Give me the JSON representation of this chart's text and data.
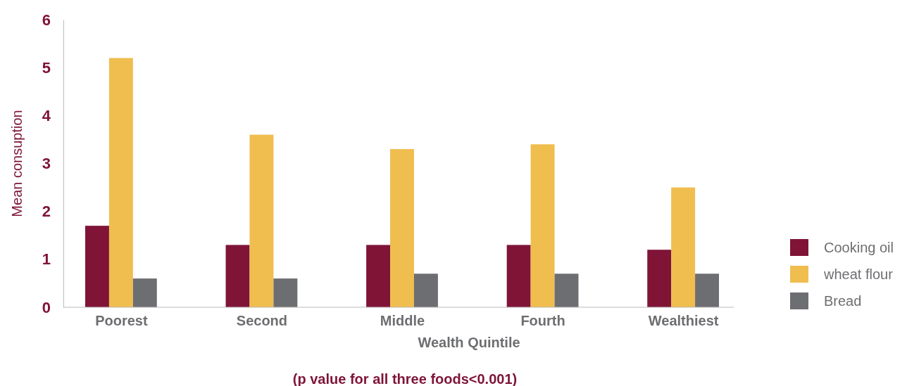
{
  "chart_data": {
    "type": "bar",
    "xlabel": "Wealth Quintile",
    "ylabel": "Mean consuption",
    "categories": [
      "Poorest",
      "Second",
      "Middle",
      "Fourth",
      "Wealthiest"
    ],
    "series": [
      {
        "name": "Cooking oil",
        "color": "#7f1437",
        "values": [
          1.7,
          1.3,
          1.3,
          1.3,
          1.2
        ]
      },
      {
        "name": "wheat flour",
        "color": "#f0bd4f",
        "values": [
          5.2,
          3.6,
          3.3,
          3.4,
          2.5
        ]
      },
      {
        "name": "Bread",
        "color": "#6d6e71",
        "values": [
          0.6,
          0.6,
          0.7,
          0.7,
          0.7
        ]
      }
    ],
    "ylim": [
      0,
      6
    ],
    "yticks": [
      0,
      1,
      2,
      3,
      4,
      5,
      6
    ],
    "grid": false,
    "legend": "right",
    "annotations": [
      "(p value for all three foods<0.001)"
    ]
  }
}
